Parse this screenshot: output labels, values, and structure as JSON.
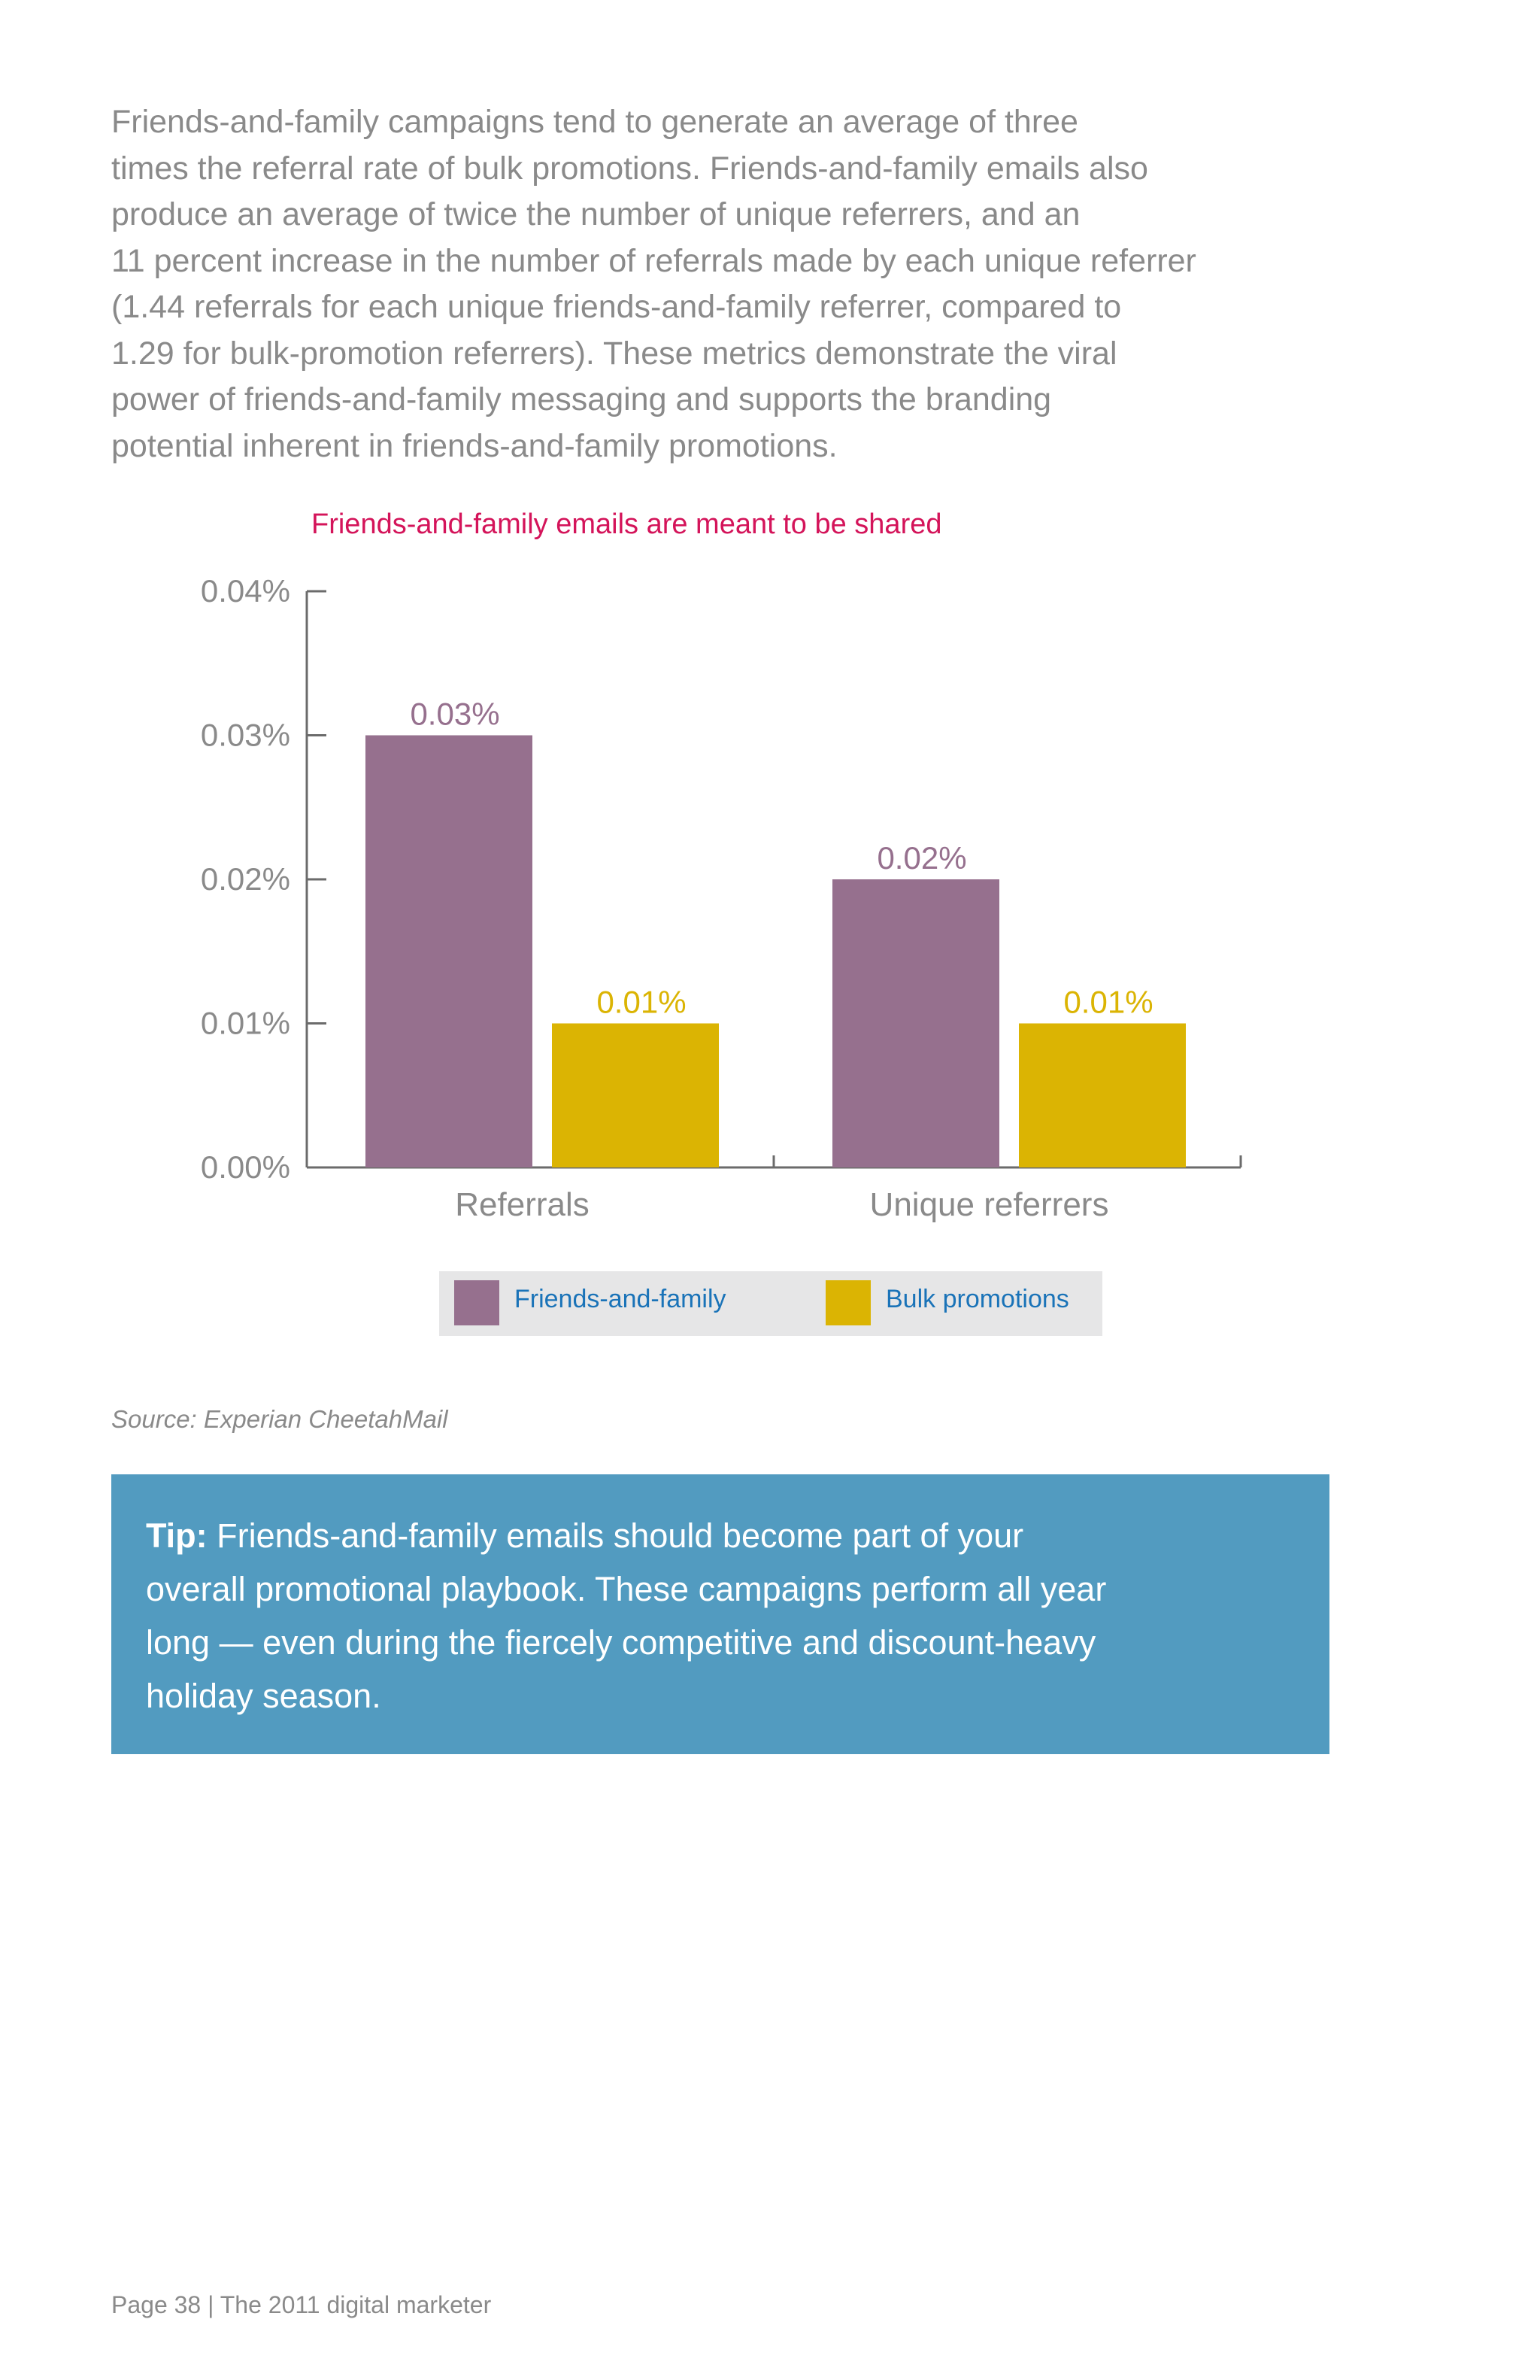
{
  "intro": {
    "lines": [
      "Friends-and-family campaigns tend to generate an average of three",
      "times the referral rate of bulk promotions. Friends-and-family emails also",
      "produce an average of twice the number of unique referrers, and an",
      "11 percent increase in the number of referrals made by each unique referrer",
      "(1.44 referrals for each unique friends-and-family referrer, compared to",
      "1.29 for bulk-promotion referrers). These metrics demonstrate the viral",
      "power of friends-and-family messaging and supports the branding",
      "potential inherent in friends-and-family promotions."
    ]
  },
  "chart_data": {
    "type": "bar",
    "title": "Friends-and-family emails are meant to be shared",
    "categories": [
      "Referrals",
      "Unique referrers"
    ],
    "series": [
      {
        "name": "Friends-and-family",
        "values": [
          0.03,
          0.02
        ],
        "labels": [
          "0.03%",
          "0.02%"
        ],
        "color": "#96708e"
      },
      {
        "name": "Bulk promotions",
        "values": [
          0.01,
          0.01
        ],
        "labels": [
          "0.01%",
          "0.01%"
        ],
        "color": "#dbb403"
      }
    ],
    "ylim": [
      0,
      0.04
    ],
    "yticks": [
      0,
      0.01,
      0.02,
      0.03,
      0.04
    ],
    "ytick_labels": [
      "0.00%",
      "0.01%",
      "0.02%",
      "0.03%",
      "0.04%"
    ],
    "xlabel": "",
    "ylabel": "",
    "grid": false,
    "legend_position": "bottom"
  },
  "source": "Source: Experian CheetahMail",
  "tip": {
    "label": "Tip:",
    "first_line": " Friends-and-family emails should become part of your",
    "lines": [
      "overall promotional playbook. These campaigns perform all year",
      "long — even during the fiercely competitive and discount-heavy",
      "holiday season."
    ]
  },
  "footer": "Page 38  |  The 2011 digital marketer",
  "colors": {
    "body_text": "#8a8a8a",
    "chart_title": "#d4145a",
    "legend_text": "#1a73b8",
    "tip_background": "#529bc0"
  }
}
